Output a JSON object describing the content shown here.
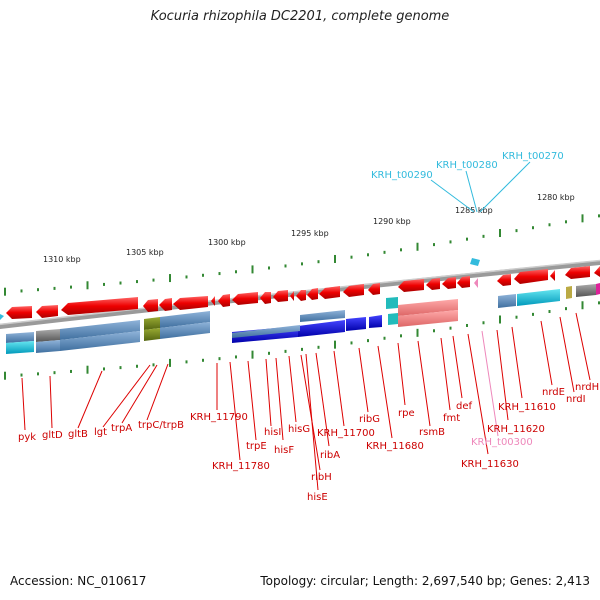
{
  "title": "Kocuria rhizophila DC2201, complete genome",
  "footer": {
    "accession": "Accession: NC_010617",
    "summary": "Topology: circular; Length: 2,697,540 bp; Genes: 2,413"
  },
  "scale_labels": [
    "1310 kbp",
    "1305 kbp",
    "1300 kbp",
    "1295 kbp",
    "1290 kbp",
    "1285 kbp",
    "1280 kbp"
  ],
  "gene_labels": [
    "pyk",
    "gltD",
    "gltB",
    "lgt",
    "trpA",
    "trpC/trpB",
    "KRH_11790",
    "KRH_11780",
    "trpE",
    "hisI",
    "hisF",
    "hisG",
    "ribH",
    "hisE",
    "ribA",
    "KRH_11700",
    "ribG",
    "KRH_11680",
    "rpe",
    "rsmB",
    "fmt",
    "def",
    "KRH_11630",
    "KRH_11620",
    "KRH_11610",
    "nrdE",
    "nrdI",
    "nrdH"
  ],
  "pseudo_label": "KRH_t00300",
  "trna_labels": [
    "KRH_t00290",
    "KRH_t00280",
    "KRH_t00270"
  ],
  "colors": {
    "gene": "#ee1111",
    "trna": "#33bbdd",
    "pseudo": "#ee88bb",
    "axis": "#888888",
    "tick": "#338833"
  }
}
